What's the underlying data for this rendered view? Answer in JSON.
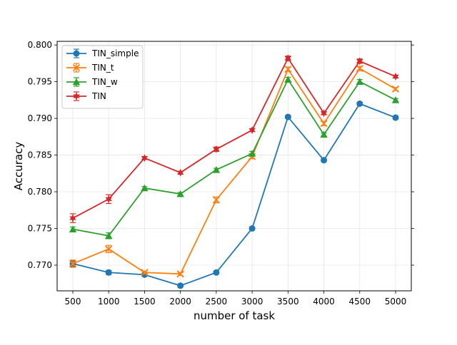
{
  "chart_data": {
    "type": "line",
    "title": "",
    "xlabel": "number of task",
    "ylabel": "Accuracy",
    "categories": [
      "500",
      "1000",
      "1500",
      "2000",
      "2500",
      "3000",
      "3500",
      "4000",
      "4500",
      "5000"
    ],
    "ylim": [
      0.7665,
      0.8005
    ],
    "yticks": [
      "0.770",
      "0.775",
      "0.780",
      "0.785",
      "0.790",
      "0.795",
      "0.800"
    ],
    "grid": true,
    "legend_position": "top-left",
    "series": [
      {
        "name": "TIN_simple",
        "color": "#1f77b4",
        "marker": "circle",
        "values": [
          0.7702,
          0.769,
          0.7687,
          0.7672,
          0.769,
          0.775,
          0.7902,
          0.7843,
          0.792,
          0.7901
        ],
        "errors": [
          0.0004,
          0.0003,
          0.0002,
          0.0002,
          0.0002,
          0.0002,
          0.0002,
          0.0002,
          0.0002,
          0.0002
        ]
      },
      {
        "name": "TIN_t",
        "color": "#ff7f0e",
        "marker": "x",
        "values": [
          0.7702,
          0.7722,
          0.769,
          0.7688,
          0.7789,
          0.7848,
          0.7967,
          0.7893,
          0.7968,
          0.794
        ],
        "errors": [
          0.0005,
          0.0005,
          0.0002,
          0.0002,
          0.0004,
          0.0003,
          0.0003,
          0.0003,
          0.0003,
          0.0002
        ]
      },
      {
        "name": "TIN_w",
        "color": "#2ca02c",
        "marker": "triangle",
        "values": [
          0.7749,
          0.774,
          0.7805,
          0.7797,
          0.783,
          0.7852,
          0.7953,
          0.7878,
          0.795,
          0.7925
        ],
        "errors": [
          0.0003,
          0.0004,
          0.0002,
          0.0002,
          0.0002,
          0.0003,
          0.0003,
          0.0002,
          0.0003,
          0.0002
        ]
      },
      {
        "name": "TIN",
        "color": "#d62728",
        "marker": "star",
        "values": [
          0.7764,
          0.779,
          0.7846,
          0.7826,
          0.7858,
          0.7884,
          0.7982,
          0.7907,
          0.7978,
          0.7957
        ],
        "errors": [
          0.0006,
          0.0006,
          0.0002,
          0.0002,
          0.0003,
          0.0002,
          0.0003,
          0.0002,
          0.0003,
          0.0002
        ]
      }
    ]
  }
}
